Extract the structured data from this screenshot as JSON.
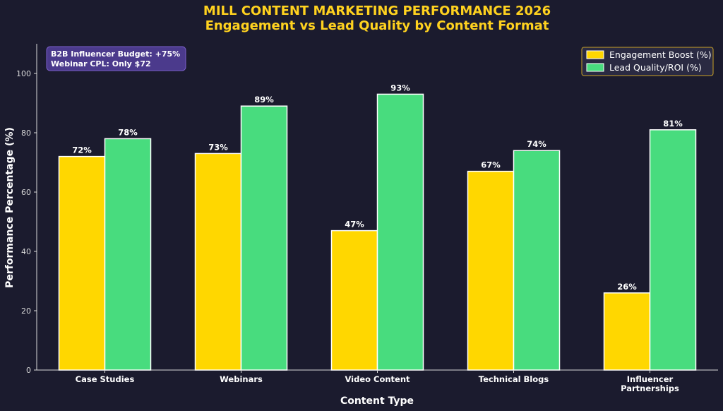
{
  "colors": {
    "background": "#1b1b2e",
    "title": "#ffd21f",
    "engagement": "#ffd700",
    "lead_quality": "#48dc7e",
    "axis": "#d9d9d9",
    "text": "#ffffff",
    "annotation_bg": "#4b3a8c",
    "annotation_border": "#7a5ec9",
    "legend_border": "#c9a227"
  },
  "chart_data": {
    "type": "bar",
    "title_line1": "MILL CONTENT MARKETING PERFORMANCE 2026",
    "title_line2": "Engagement vs Lead Quality by Content Format",
    "xlabel": "Content Type",
    "ylabel": "Performance Percentage (%)",
    "ylim": [
      0,
      110
    ],
    "yticks": [
      0,
      20,
      40,
      60,
      80,
      100
    ],
    "categories": [
      [
        "Case Studies"
      ],
      [
        "Webinars"
      ],
      [
        "Video Content"
      ],
      [
        "Technical Blogs"
      ],
      [
        "Influencer",
        "Partnerships"
      ]
    ],
    "series": [
      {
        "name": "Engagement Boost (%)",
        "values": [
          72,
          73,
          47,
          67,
          26
        ]
      },
      {
        "name": "Lead Quality/ROI (%)",
        "values": [
          78,
          89,
          93,
          74,
          81
        ]
      }
    ],
    "value_label_suffix": "%",
    "legend_position": "top-right",
    "grid": false,
    "annotation": [
      "B2B Influencer Budget: +75%",
      "Webinar CPL: Only $72"
    ]
  }
}
